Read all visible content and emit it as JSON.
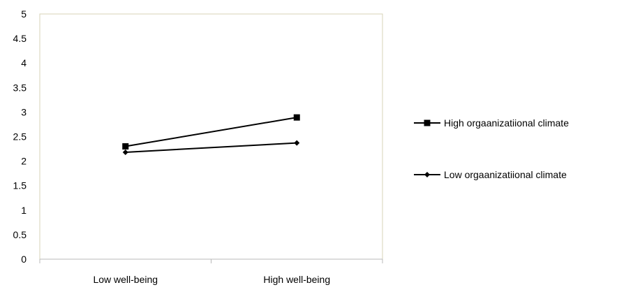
{
  "chart_data": {
    "type": "line",
    "categories": [
      "Low well-being",
      "High well-being"
    ],
    "series": [
      {
        "name": "High orgaanizatiional climate",
        "values": [
          2.3,
          2.89
        ],
        "marker": "square",
        "color": "#000000"
      },
      {
        "name": "Low orgaanizatiional climate",
        "values": [
          2.18,
          2.37
        ],
        "marker": "diamond",
        "color": "#000000"
      }
    ],
    "yticks": [
      "0",
      "0.5",
      "1",
      "1.5",
      "2",
      "2.5",
      "3",
      "3.5",
      "4",
      "4.5",
      "5"
    ],
    "ylim": [
      0,
      5
    ],
    "title": "",
    "xlabel": "",
    "ylabel": "",
    "grid": false,
    "legend": "right",
    "plot_border_color": "#d7d3b7",
    "axis_color": "#b8b8b8"
  }
}
